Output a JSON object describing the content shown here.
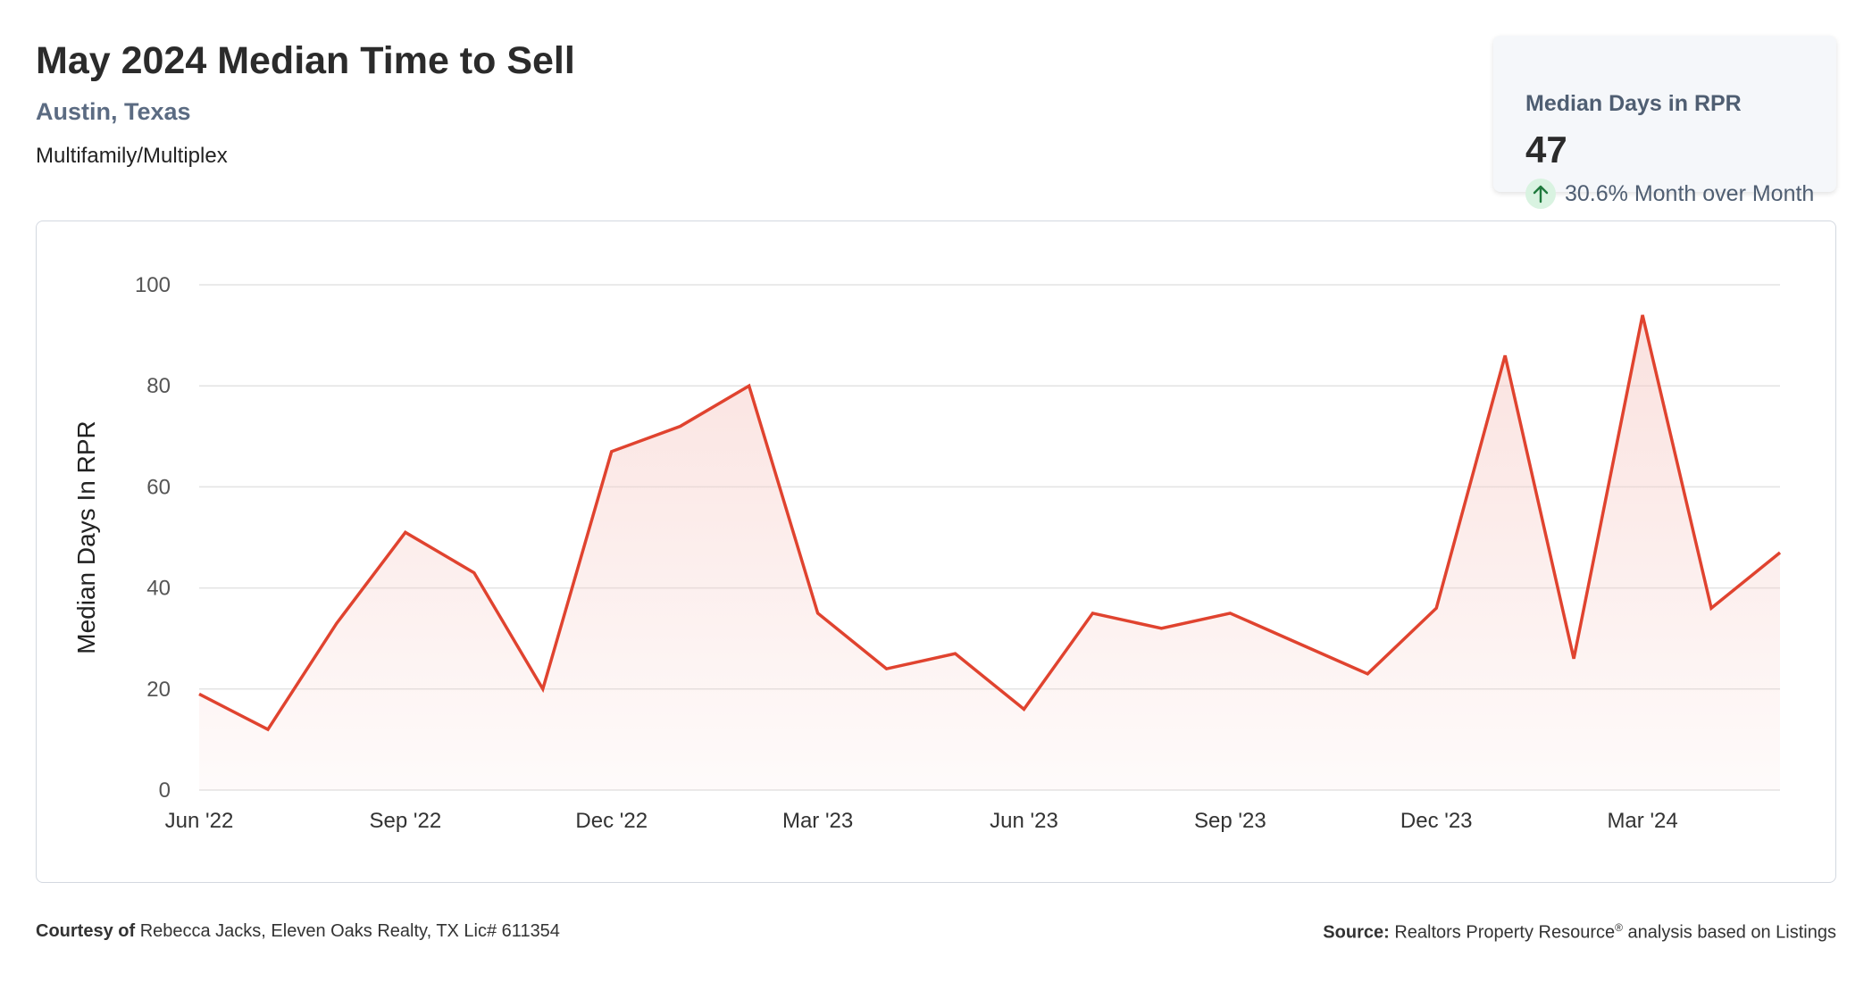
{
  "header": {
    "title": "May 2024 Median Time to Sell",
    "location": "Austin, Texas",
    "property_type": "Multifamily/Multiplex"
  },
  "kpi": {
    "label": "Median Days in RPR",
    "value": "47",
    "change": "30.6% Month over Month",
    "change_direction": "up",
    "icon": "arrow-up-icon"
  },
  "footer": {
    "courtesy_label": "Courtesy of",
    "courtesy_text": "Rebecca Jacks, Eleven Oaks Realty, TX Lic# 611354",
    "source_label": "Source:",
    "source_text_pre": "Realtors Property Resource",
    "source_sup": "®",
    "source_text_post": "analysis based on Listings"
  },
  "colors": {
    "line": "#e0432f",
    "fill": "#f6c9c4",
    "grid": "#e3e3e3",
    "location": "#5b6b82",
    "kpi_bg": "#f5f7fa"
  },
  "chart_data": {
    "type": "area",
    "ylabel": "Median Days In RPR",
    "xlabel": "",
    "ylim": [
      0,
      100
    ],
    "yticks": [
      0,
      20,
      40,
      60,
      80,
      100
    ],
    "grid": true,
    "x": [
      "Jun '22",
      "Jul '22",
      "Aug '22",
      "Sep '22",
      "Oct '22",
      "Nov '22",
      "Dec '22",
      "Jan '23",
      "Feb '23",
      "Mar '23",
      "Apr '23",
      "May '23",
      "Jun '23",
      "Jul '23",
      "Aug '23",
      "Sep '23",
      "Oct '23",
      "Nov '23",
      "Dec '23",
      "Jan '24",
      "Feb '24",
      "Mar '24",
      "Apr '24",
      "May '24"
    ],
    "xtick_labels": [
      "Jun '22",
      "Sep '22",
      "Dec '22",
      "Mar '23",
      "Jun '23",
      "Sep '23",
      "Dec '23",
      "Mar '24"
    ],
    "series": [
      {
        "values": [
          19,
          12,
          33,
          51,
          43,
          20,
          67,
          72,
          80,
          35,
          24,
          27,
          16,
          35,
          32,
          35,
          29,
          23,
          36,
          86,
          26,
          94,
          36,
          47
        ]
      }
    ]
  }
}
